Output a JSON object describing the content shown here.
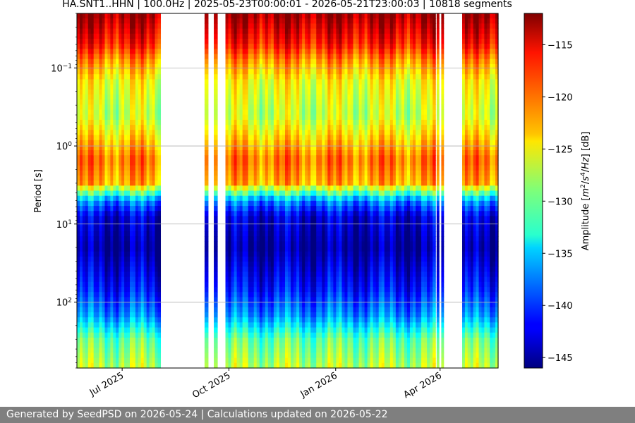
{
  "chart_data": {
    "type": "heatmap",
    "title": "HA.SNT1..HHN | 100.0Hz | 2025-05-23T00:00:01 - 2026-05-21T23:00:03 | 10818 segments",
    "ylabel": "Period [s]",
    "colorbar_label": "Amplitude [m²/s⁴/Hz] [dB]",
    "colorbar_label_parts": {
      "pre": "Amplitude [",
      "m": "m",
      "m_exp": "2",
      "mid": "/",
      "s": "s",
      "s_exp": "4",
      "post": "/",
      "hz": "Hz",
      "end": "] [dB]"
    },
    "x_range": [
      "2025-05-23",
      "2026-05-21"
    ],
    "y_scale": "log",
    "y_range_period_s": [
      0.02,
      700
    ],
    "y_ticks": [
      {
        "base": "10",
        "exp": "−1",
        "value": 0.1
      },
      {
        "base": "10",
        "exp": "0",
        "value": 1
      },
      {
        "base": "10",
        "exp": "1",
        "value": 10
      },
      {
        "base": "10",
        "exp": "2",
        "value": 100
      }
    ],
    "x_ticks": [
      {
        "label": "Jul 2025",
        "date": "2025-07-01"
      },
      {
        "label": "Oct 2025",
        "date": "2025-10-01"
      },
      {
        "label": "Jan 2026",
        "date": "2026-01-01"
      },
      {
        "label": "Apr 2026",
        "date": "2026-04-01"
      }
    ],
    "colorbar_range_db": [
      -146,
      -112
    ],
    "colorbar_ticks": [
      -115,
      -120,
      -125,
      -130,
      -135,
      -140,
      -145
    ],
    "colormap": "jet",
    "grid": true,
    "data_periods": [
      [
        "2025-05-23",
        "2025-08-03"
      ],
      [
        "2025-09-10",
        "2025-09-13"
      ],
      [
        "2025-09-18",
        "2025-09-21"
      ],
      [
        "2025-09-28",
        "2026-03-28"
      ],
      [
        "2026-03-29",
        "2026-03-31"
      ],
      [
        "2026-04-02",
        "2026-04-04"
      ],
      [
        "2026-04-20",
        "2026-05-21"
      ]
    ],
    "spectrum_profile": [
      {
        "period_s": 0.02,
        "db": -113
      },
      {
        "period_s": 0.05,
        "db": -117
      },
      {
        "period_s": 0.08,
        "db": -121
      },
      {
        "period_s": 0.15,
        "db": -125
      },
      {
        "period_s": 0.4,
        "db": -127
      },
      {
        "period_s": 1.5,
        "db": -120
      },
      {
        "period_s": 3,
        "db": -122
      },
      {
        "period_s": 5,
        "db": -137
      },
      {
        "period_s": 8,
        "db": -143
      },
      {
        "period_s": 20,
        "db": -145
      },
      {
        "period_s": 70,
        "db": -141
      },
      {
        "period_s": 150,
        "db": -137
      },
      {
        "period_s": 300,
        "db": -130
      },
      {
        "period_s": 700,
        "db": -127
      }
    ]
  },
  "footer": {
    "text": "Generated by SeedPSD on 2026-05-24 | Calculations updated on 2026-05-22"
  }
}
